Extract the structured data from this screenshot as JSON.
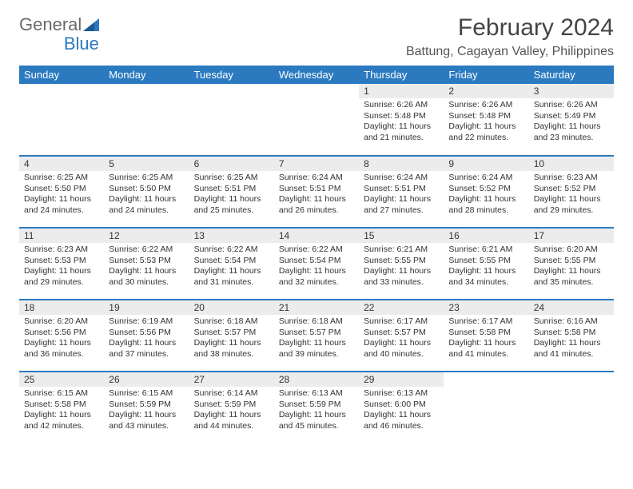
{
  "logo": {
    "text1": "General",
    "text2": "Blue"
  },
  "header": {
    "month_title": "February 2024",
    "location": "Battung, Cagayan Valley, Philippines"
  },
  "weekdays": [
    "Sunday",
    "Monday",
    "Tuesday",
    "Wednesday",
    "Thursday",
    "Friday",
    "Saturday"
  ],
  "colors": {
    "header_bg": "#2b7ac0",
    "header_text": "#ffffff",
    "daynum_bg": "#ececec",
    "body_text": "#333333",
    "rule": "#2b7ac0"
  },
  "weeks": [
    [
      {
        "empty": true
      },
      {
        "empty": true
      },
      {
        "empty": true
      },
      {
        "empty": true
      },
      {
        "day": "1",
        "sunrise": "Sunrise: 6:26 AM",
        "sunset": "Sunset: 5:48 PM",
        "daylight1": "Daylight: 11 hours",
        "daylight2": "and 21 minutes."
      },
      {
        "day": "2",
        "sunrise": "Sunrise: 6:26 AM",
        "sunset": "Sunset: 5:48 PM",
        "daylight1": "Daylight: 11 hours",
        "daylight2": "and 22 minutes."
      },
      {
        "day": "3",
        "sunrise": "Sunrise: 6:26 AM",
        "sunset": "Sunset: 5:49 PM",
        "daylight1": "Daylight: 11 hours",
        "daylight2": "and 23 minutes."
      }
    ],
    [
      {
        "day": "4",
        "sunrise": "Sunrise: 6:25 AM",
        "sunset": "Sunset: 5:50 PM",
        "daylight1": "Daylight: 11 hours",
        "daylight2": "and 24 minutes."
      },
      {
        "day": "5",
        "sunrise": "Sunrise: 6:25 AM",
        "sunset": "Sunset: 5:50 PM",
        "daylight1": "Daylight: 11 hours",
        "daylight2": "and 24 minutes."
      },
      {
        "day": "6",
        "sunrise": "Sunrise: 6:25 AM",
        "sunset": "Sunset: 5:51 PM",
        "daylight1": "Daylight: 11 hours",
        "daylight2": "and 25 minutes."
      },
      {
        "day": "7",
        "sunrise": "Sunrise: 6:24 AM",
        "sunset": "Sunset: 5:51 PM",
        "daylight1": "Daylight: 11 hours",
        "daylight2": "and 26 minutes."
      },
      {
        "day": "8",
        "sunrise": "Sunrise: 6:24 AM",
        "sunset": "Sunset: 5:51 PM",
        "daylight1": "Daylight: 11 hours",
        "daylight2": "and 27 minutes."
      },
      {
        "day": "9",
        "sunrise": "Sunrise: 6:24 AM",
        "sunset": "Sunset: 5:52 PM",
        "daylight1": "Daylight: 11 hours",
        "daylight2": "and 28 minutes."
      },
      {
        "day": "10",
        "sunrise": "Sunrise: 6:23 AM",
        "sunset": "Sunset: 5:52 PM",
        "daylight1": "Daylight: 11 hours",
        "daylight2": "and 29 minutes."
      }
    ],
    [
      {
        "day": "11",
        "sunrise": "Sunrise: 6:23 AM",
        "sunset": "Sunset: 5:53 PM",
        "daylight1": "Daylight: 11 hours",
        "daylight2": "and 29 minutes."
      },
      {
        "day": "12",
        "sunrise": "Sunrise: 6:22 AM",
        "sunset": "Sunset: 5:53 PM",
        "daylight1": "Daylight: 11 hours",
        "daylight2": "and 30 minutes."
      },
      {
        "day": "13",
        "sunrise": "Sunrise: 6:22 AM",
        "sunset": "Sunset: 5:54 PM",
        "daylight1": "Daylight: 11 hours",
        "daylight2": "and 31 minutes."
      },
      {
        "day": "14",
        "sunrise": "Sunrise: 6:22 AM",
        "sunset": "Sunset: 5:54 PM",
        "daylight1": "Daylight: 11 hours",
        "daylight2": "and 32 minutes."
      },
      {
        "day": "15",
        "sunrise": "Sunrise: 6:21 AM",
        "sunset": "Sunset: 5:55 PM",
        "daylight1": "Daylight: 11 hours",
        "daylight2": "and 33 minutes."
      },
      {
        "day": "16",
        "sunrise": "Sunrise: 6:21 AM",
        "sunset": "Sunset: 5:55 PM",
        "daylight1": "Daylight: 11 hours",
        "daylight2": "and 34 minutes."
      },
      {
        "day": "17",
        "sunrise": "Sunrise: 6:20 AM",
        "sunset": "Sunset: 5:55 PM",
        "daylight1": "Daylight: 11 hours",
        "daylight2": "and 35 minutes."
      }
    ],
    [
      {
        "day": "18",
        "sunrise": "Sunrise: 6:20 AM",
        "sunset": "Sunset: 5:56 PM",
        "daylight1": "Daylight: 11 hours",
        "daylight2": "and 36 minutes."
      },
      {
        "day": "19",
        "sunrise": "Sunrise: 6:19 AM",
        "sunset": "Sunset: 5:56 PM",
        "daylight1": "Daylight: 11 hours",
        "daylight2": "and 37 minutes."
      },
      {
        "day": "20",
        "sunrise": "Sunrise: 6:18 AM",
        "sunset": "Sunset: 5:57 PM",
        "daylight1": "Daylight: 11 hours",
        "daylight2": "and 38 minutes."
      },
      {
        "day": "21",
        "sunrise": "Sunrise: 6:18 AM",
        "sunset": "Sunset: 5:57 PM",
        "daylight1": "Daylight: 11 hours",
        "daylight2": "and 39 minutes."
      },
      {
        "day": "22",
        "sunrise": "Sunrise: 6:17 AM",
        "sunset": "Sunset: 5:57 PM",
        "daylight1": "Daylight: 11 hours",
        "daylight2": "and 40 minutes."
      },
      {
        "day": "23",
        "sunrise": "Sunrise: 6:17 AM",
        "sunset": "Sunset: 5:58 PM",
        "daylight1": "Daylight: 11 hours",
        "daylight2": "and 41 minutes."
      },
      {
        "day": "24",
        "sunrise": "Sunrise: 6:16 AM",
        "sunset": "Sunset: 5:58 PM",
        "daylight1": "Daylight: 11 hours",
        "daylight2": "and 41 minutes."
      }
    ],
    [
      {
        "day": "25",
        "sunrise": "Sunrise: 6:15 AM",
        "sunset": "Sunset: 5:58 PM",
        "daylight1": "Daylight: 11 hours",
        "daylight2": "and 42 minutes."
      },
      {
        "day": "26",
        "sunrise": "Sunrise: 6:15 AM",
        "sunset": "Sunset: 5:59 PM",
        "daylight1": "Daylight: 11 hours",
        "daylight2": "and 43 minutes."
      },
      {
        "day": "27",
        "sunrise": "Sunrise: 6:14 AM",
        "sunset": "Sunset: 5:59 PM",
        "daylight1": "Daylight: 11 hours",
        "daylight2": "and 44 minutes."
      },
      {
        "day": "28",
        "sunrise": "Sunrise: 6:13 AM",
        "sunset": "Sunset: 5:59 PM",
        "daylight1": "Daylight: 11 hours",
        "daylight2": "and 45 minutes."
      },
      {
        "day": "29",
        "sunrise": "Sunrise: 6:13 AM",
        "sunset": "Sunset: 6:00 PM",
        "daylight1": "Daylight: 11 hours",
        "daylight2": "and 46 minutes."
      },
      {
        "empty": true
      },
      {
        "empty": true
      }
    ]
  ]
}
